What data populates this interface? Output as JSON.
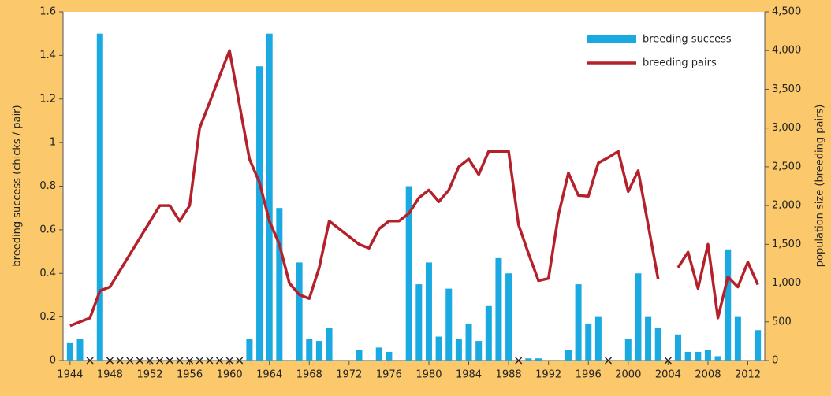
{
  "chart_data": {
    "type": "combo",
    "y_label": "breeding success (chicks / pair)",
    "y2_label": "population size (breeding pairs)",
    "x": [
      1944,
      1945,
      1946,
      1947,
      1948,
      1949,
      1950,
      1951,
      1952,
      1953,
      1954,
      1955,
      1956,
      1957,
      1958,
      1959,
      1960,
      1961,
      1962,
      1963,
      1964,
      1965,
      1966,
      1967,
      1968,
      1969,
      1970,
      1971,
      1972,
      1973,
      1974,
      1975,
      1976,
      1977,
      1978,
      1979,
      1980,
      1981,
      1982,
      1983,
      1984,
      1985,
      1986,
      1987,
      1988,
      1989,
      1990,
      1991,
      1992,
      1993,
      1994,
      1995,
      1996,
      1997,
      1998,
      1999,
      2000,
      2001,
      2002,
      2003,
      2004,
      2005,
      2006,
      2007,
      2008,
      2009,
      2010,
      2011,
      2012,
      2013
    ],
    "xlim": [
      1943.3,
      2013.7
    ],
    "xticks": [
      1944,
      1948,
      1952,
      1956,
      1960,
      1964,
      1968,
      1972,
      1976,
      1980,
      1984,
      1988,
      1992,
      1996,
      2000,
      2004,
      2008,
      2012
    ],
    "ylim": [
      0,
      1.6
    ],
    "yticks": [
      0,
      0.2,
      0.4,
      0.6,
      0.8,
      1,
      1.2,
      1.4,
      1.6
    ],
    "y2lim": [
      0,
      4500
    ],
    "y2ticks": [
      0,
      500,
      {
        "value": 1000,
        "label": "1,000"
      },
      {
        "value": 1500,
        "label": "1,500"
      },
      {
        "value": 2000,
        "label": "2,000"
      },
      {
        "value": 2500,
        "label": "2,500"
      },
      {
        "value": 3000,
        "label": "3,000"
      },
      {
        "value": 3500,
        "label": "3,500"
      },
      {
        "value": 4000,
        "label": "4,000"
      },
      {
        "value": 4500,
        "label": "4,500"
      }
    ],
    "legend": "top-right",
    "series": [
      {
        "name": "breeding success",
        "type": "bar",
        "color": "#1aa9e1",
        "values": [
          0.08,
          0.1,
          0,
          1.5,
          0,
          0,
          0,
          0,
          0,
          0,
          0,
          0,
          0,
          0,
          0,
          0,
          0,
          0,
          0.1,
          1.35,
          1.5,
          0.7,
          null,
          0.45,
          0.1,
          0.09,
          0.15,
          null,
          null,
          0.05,
          null,
          0.06,
          0.04,
          null,
          0.8,
          0.35,
          0.45,
          0.11,
          0.33,
          0.1,
          0.17,
          0.09,
          0.25,
          0.47,
          0.4,
          0,
          0.01,
          0.01,
          null,
          null,
          0.05,
          0.35,
          0.17,
          0.2,
          0,
          null,
          0.1,
          0.4,
          0.2,
          0.15,
          0,
          0.12,
          0.04,
          0.04,
          0.05,
          0.02,
          0.51,
          0.2,
          null,
          0.14
        ]
      },
      {
        "name": "breeding pairs",
        "type": "line",
        "axis": "y2",
        "color": "#b5212b",
        "values": [
          450,
          500,
          550,
          900,
          950,
          1160,
          1370,
          1580,
          1790,
          2000,
          2000,
          1800,
          2000,
          3000,
          3330,
          3670,
          4000,
          3300,
          2600,
          2300,
          1800,
          1500,
          1000,
          850,
          800,
          1200,
          1800,
          1700,
          1600,
          1500,
          1450,
          1700,
          1800,
          1800,
          1900,
          2100,
          2200,
          2050,
          2200,
          2500,
          2600,
          2400,
          2700,
          2700,
          2700,
          1750,
          1380,
          1030,
          1060,
          1880,
          2420,
          2130,
          2120,
          2550,
          2620,
          2700,
          2180,
          2450,
          1750,
          1050,
          null,
          1200,
          1400,
          930,
          1500,
          550,
          1080,
          950,
          1270,
          980
        ]
      }
    ]
  }
}
